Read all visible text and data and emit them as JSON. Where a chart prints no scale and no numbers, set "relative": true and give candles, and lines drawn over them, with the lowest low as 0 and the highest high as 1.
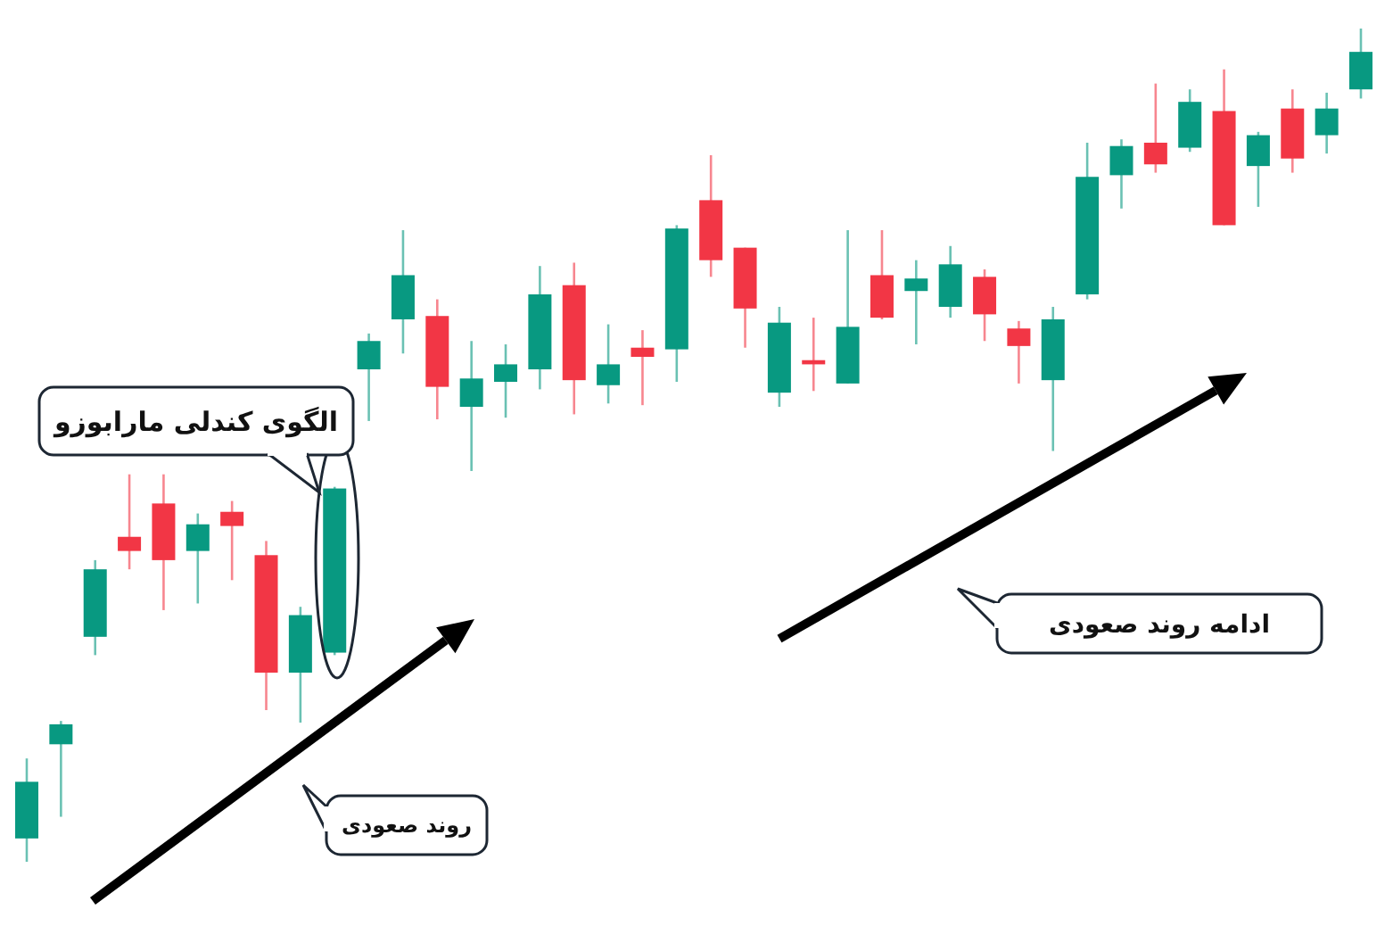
{
  "chart_data": {
    "type": "candlestick",
    "relative": true,
    "categories": [
      null,
      null,
      null,
      null,
      null,
      null,
      null,
      null,
      null,
      null,
      null,
      null,
      null,
      null,
      null,
      null,
      null,
      null,
      null,
      null,
      null,
      null,
      null,
      null,
      null,
      null,
      null,
      null,
      null,
      null,
      null,
      null,
      null,
      null,
      null,
      null,
      null,
      null,
      null,
      null
    ],
    "ohlc": [
      [
        0.028,
        0.124,
        0,
        0.096
      ],
      [
        0.141,
        0.169,
        0.054,
        0.165
      ],
      [
        0.27,
        0.362,
        0.248,
        0.351
      ],
      [
        0.39,
        0.465,
        0.351,
        0.373
      ],
      [
        0.43,
        0.465,
        0.302,
        0.362
      ],
      [
        0.373,
        0.418,
        0.31,
        0.405
      ],
      [
        0.42,
        0.433,
        0.338,
        0.403
      ],
      [
        0.368,
        0.385,
        0.182,
        0.227
      ],
      [
        0.227,
        0.306,
        0.167,
        0.296
      ],
      [
        0.251,
        0.45,
        0.248,
        0.448
      ],
      [
        0.591,
        0.634,
        0.529,
        0.625
      ],
      [
        0.651,
        0.758,
        0.61,
        0.704
      ],
      [
        0.655,
        0.675,
        0.531,
        0.57
      ],
      [
        0.546,
        0.625,
        0.469,
        0.58
      ],
      [
        0.576,
        0.621,
        0.533,
        0.597
      ],
      [
        0.591,
        0.715,
        0.567,
        0.681
      ],
      [
        0.692,
        0.719,
        0.537,
        0.578
      ],
      [
        0.572,
        0.645,
        0.55,
        0.597
      ],
      [
        0.617,
        0.638,
        0.548,
        0.606
      ],
      [
        0.615,
        0.764,
        0.576,
        0.76
      ],
      [
        0.794,
        0.848,
        0.702,
        0.722
      ],
      [
        0.737,
        0.737,
        0.617,
        0.664
      ],
      [
        0.563,
        0.666,
        0.546,
        0.647
      ],
      [
        0.602,
        0.653,
        0.565,
        0.597
      ],
      [
        0.574,
        0.758,
        0.574,
        0.642
      ],
      [
        0.704,
        0.758,
        0.651,
        0.653
      ],
      [
        0.685,
        0.722,
        0.621,
        0.7
      ],
      [
        0.666,
        0.739,
        0.653,
        0.717
      ],
      [
        0.702,
        0.711,
        0.625,
        0.657
      ],
      [
        0.64,
        0.649,
        0.574,
        0.619
      ],
      [
        0.578,
        0.666,
        0.493,
        0.651
      ],
      [
        0.681,
        0.863,
        0.675,
        0.822
      ],
      [
        0.824,
        0.867,
        0.784,
        0.859
      ],
      [
        0.863,
        0.934,
        0.827,
        0.837
      ],
      [
        0.857,
        0.927,
        0.852,
        0.912
      ],
      [
        0.901,
        0.951,
        0.764,
        0.764
      ],
      [
        0.835,
        0.876,
        0.786,
        0.872
      ],
      [
        0.904,
        0.927,
        0.827,
        0.844
      ],
      [
        0.872,
        0.923,
        0.85,
        0.904
      ],
      [
        0.927,
        1,
        0.916,
        0.972
      ]
    ],
    "colors": [
      "#089981",
      "#089981",
      "#089981",
      "#f23645",
      "#f23645",
      "#089981",
      "#f23645",
      "#f23645",
      "#089981",
      "#089981",
      "#089981",
      "#089981",
      "#f23645",
      "#089981",
      "#089981",
      "#089981",
      "#f23645",
      "#089981",
      "#f23645",
      "#089981",
      "#f23645",
      "#f23645",
      "#089981",
      "#f23645",
      "#089981",
      "#f23645",
      "#089981",
      "#089981",
      "#f23645",
      "#f23645",
      "#089981",
      "#089981",
      "#089981",
      "#f23645",
      "#089981",
      "#f23645",
      "#089981",
      "#f23645",
      "#089981",
      "#089981"
    ],
    "annotations": [
      "الگوی کندلی مارابوزو",
      "روند صعودی",
      "ادامه روند صعودی"
    ]
  }
}
